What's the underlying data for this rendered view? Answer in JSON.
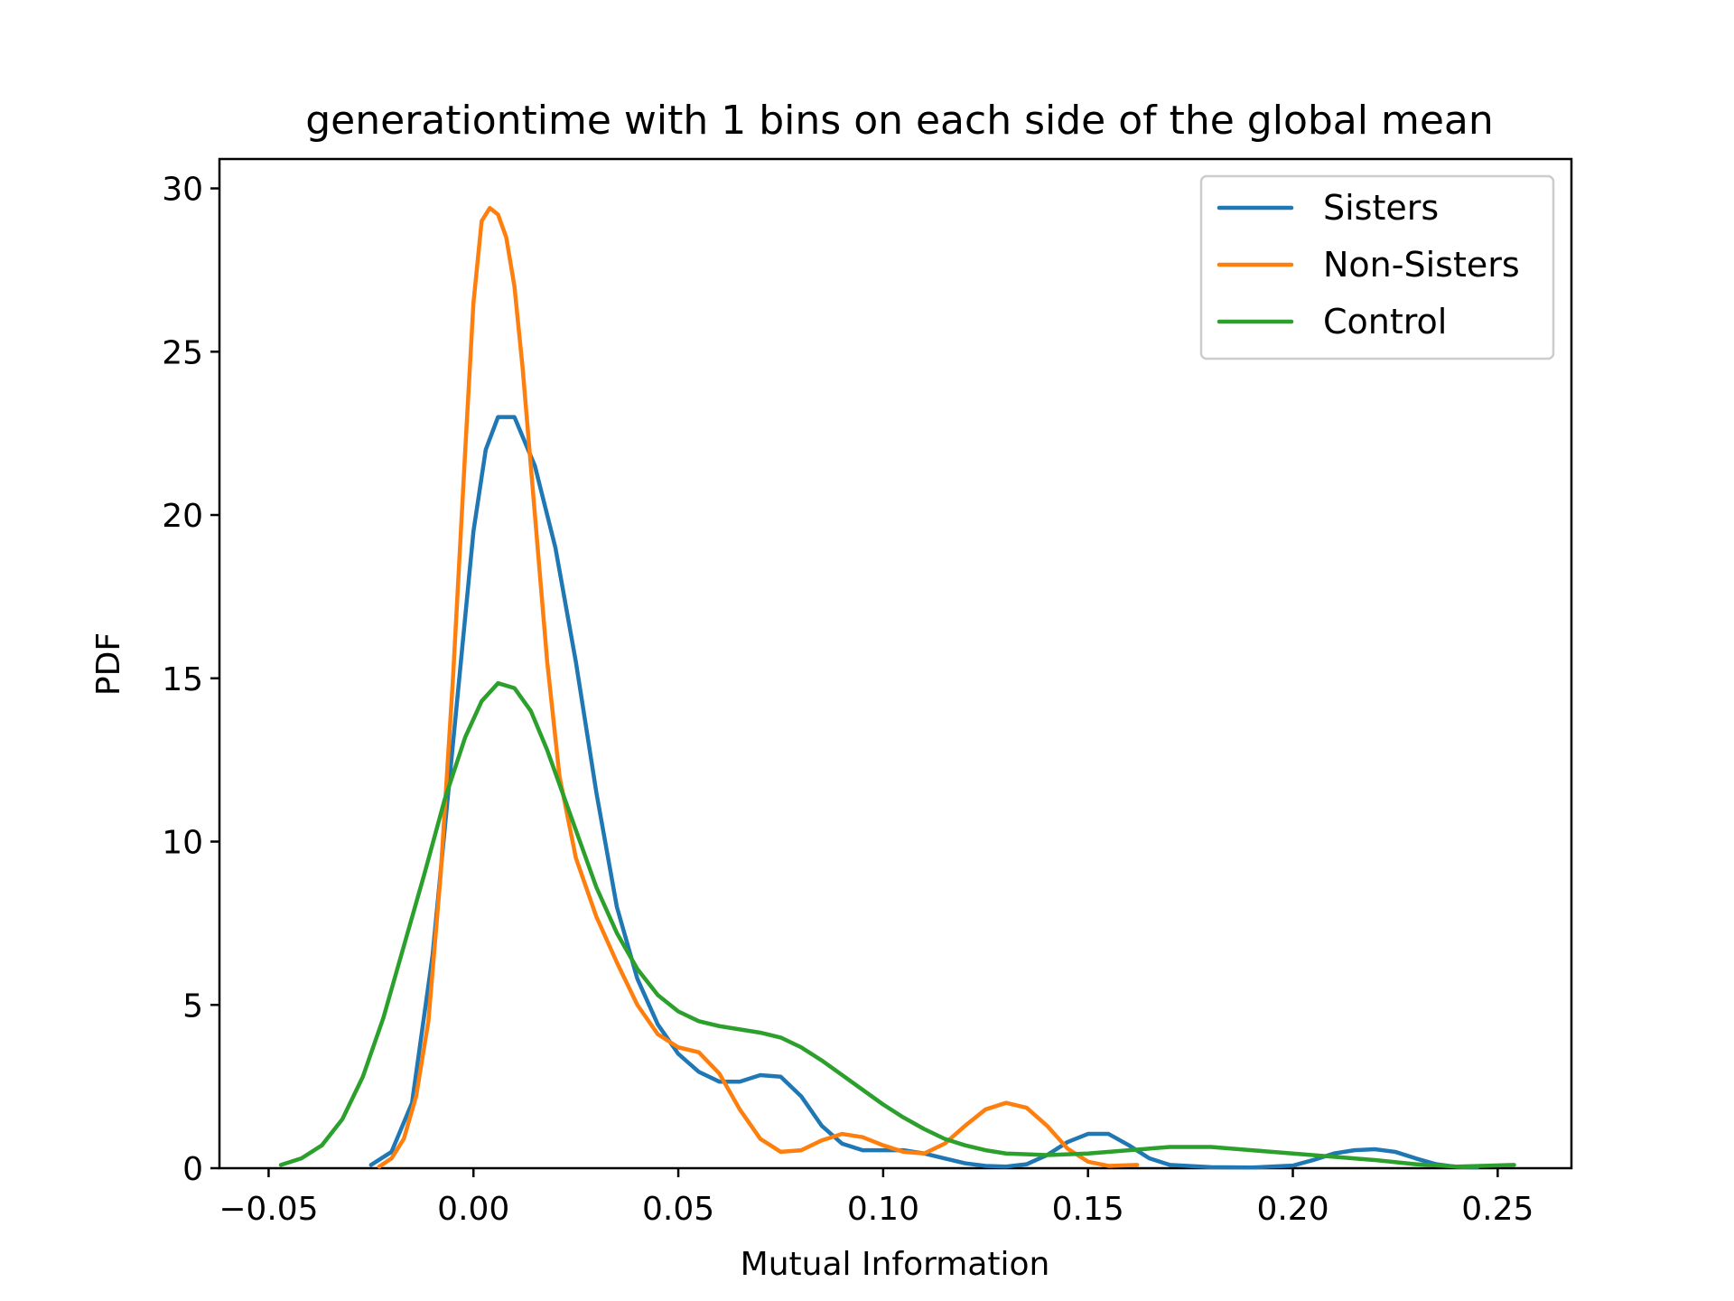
{
  "chart_data": {
    "type": "line",
    "title": "generationtime with 1 bins on each side of the global mean",
    "xlabel": "Mutual Information",
    "ylabel": "PDF",
    "xlim": [
      -0.062,
      0.268
    ],
    "ylim": [
      0,
      30.9
    ],
    "xticks": [
      -0.05,
      0.0,
      0.05,
      0.1,
      0.15,
      0.2,
      0.25
    ],
    "xtick_labels": [
      "−0.05",
      "0.00",
      "0.05",
      "0.10",
      "0.15",
      "0.20",
      "0.25"
    ],
    "yticks": [
      0,
      5,
      10,
      15,
      20,
      25,
      30
    ],
    "ytick_labels": [
      "0",
      "5",
      "10",
      "15",
      "20",
      "25",
      "30"
    ],
    "grid": false,
    "legend_position": "top-right",
    "series": [
      {
        "name": "Sisters",
        "color": "#1f77b4",
        "points": [
          [
            -0.025,
            0.1
          ],
          [
            -0.02,
            0.5
          ],
          [
            -0.015,
            2.0
          ],
          [
            -0.01,
            6.5
          ],
          [
            -0.005,
            13.0
          ],
          [
            0.0,
            19.5
          ],
          [
            0.003,
            22.0
          ],
          [
            0.006,
            23.0
          ],
          [
            0.01,
            23.0
          ],
          [
            0.015,
            21.5
          ],
          [
            0.02,
            19.0
          ],
          [
            0.025,
            15.5
          ],
          [
            0.03,
            11.5
          ],
          [
            0.035,
            8.0
          ],
          [
            0.04,
            5.8
          ],
          [
            0.045,
            4.4
          ],
          [
            0.05,
            3.5
          ],
          [
            0.055,
            2.95
          ],
          [
            0.06,
            2.65
          ],
          [
            0.065,
            2.65
          ],
          [
            0.07,
            2.85
          ],
          [
            0.075,
            2.8
          ],
          [
            0.08,
            2.2
          ],
          [
            0.085,
            1.3
          ],
          [
            0.09,
            0.75
          ],
          [
            0.095,
            0.55
          ],
          [
            0.1,
            0.55
          ],
          [
            0.105,
            0.55
          ],
          [
            0.11,
            0.45
          ],
          [
            0.115,
            0.3
          ],
          [
            0.12,
            0.15
          ],
          [
            0.125,
            0.07
          ],
          [
            0.13,
            0.05
          ],
          [
            0.135,
            0.12
          ],
          [
            0.14,
            0.4
          ],
          [
            0.145,
            0.8
          ],
          [
            0.15,
            1.05
          ],
          [
            0.155,
            1.05
          ],
          [
            0.16,
            0.7
          ],
          [
            0.165,
            0.3
          ],
          [
            0.17,
            0.1
          ],
          [
            0.18,
            0.03
          ],
          [
            0.19,
            0.02
          ],
          [
            0.2,
            0.08
          ],
          [
            0.205,
            0.25
          ],
          [
            0.21,
            0.45
          ],
          [
            0.215,
            0.55
          ],
          [
            0.22,
            0.58
          ],
          [
            0.225,
            0.5
          ],
          [
            0.23,
            0.3
          ],
          [
            0.235,
            0.12
          ],
          [
            0.24,
            0.04
          ],
          [
            0.245,
            0.02
          ]
        ]
      },
      {
        "name": "Non-Sisters",
        "color": "#ff7f0e",
        "points": [
          [
            -0.023,
            0.05
          ],
          [
            -0.02,
            0.3
          ],
          [
            -0.017,
            0.9
          ],
          [
            -0.014,
            2.2
          ],
          [
            -0.011,
            4.5
          ],
          [
            -0.008,
            9.0
          ],
          [
            -0.005,
            15.0
          ],
          [
            -0.002,
            22.0
          ],
          [
            0.0,
            26.5
          ],
          [
            0.002,
            29.0
          ],
          [
            0.004,
            29.4
          ],
          [
            0.006,
            29.2
          ],
          [
            0.008,
            28.5
          ],
          [
            0.01,
            27.0
          ],
          [
            0.012,
            24.5
          ],
          [
            0.015,
            20.0
          ],
          [
            0.018,
            15.5
          ],
          [
            0.021,
            12.0
          ],
          [
            0.025,
            9.5
          ],
          [
            0.03,
            7.7
          ],
          [
            0.035,
            6.3
          ],
          [
            0.04,
            5.0
          ],
          [
            0.045,
            4.1
          ],
          [
            0.05,
            3.7
          ],
          [
            0.055,
            3.55
          ],
          [
            0.06,
            2.9
          ],
          [
            0.065,
            1.8
          ],
          [
            0.07,
            0.9
          ],
          [
            0.075,
            0.5
          ],
          [
            0.08,
            0.55
          ],
          [
            0.085,
            0.85
          ],
          [
            0.09,
            1.05
          ],
          [
            0.095,
            0.95
          ],
          [
            0.1,
            0.7
          ],
          [
            0.105,
            0.5
          ],
          [
            0.11,
            0.45
          ],
          [
            0.115,
            0.75
          ],
          [
            0.12,
            1.3
          ],
          [
            0.125,
            1.8
          ],
          [
            0.13,
            2.0
          ],
          [
            0.135,
            1.85
          ],
          [
            0.14,
            1.3
          ],
          [
            0.145,
            0.6
          ],
          [
            0.15,
            0.2
          ],
          [
            0.155,
            0.07
          ],
          [
            0.162,
            0.1
          ]
        ]
      },
      {
        "name": "Control",
        "color": "#2ca02c",
        "points": [
          [
            -0.047,
            0.1
          ],
          [
            -0.042,
            0.3
          ],
          [
            -0.037,
            0.7
          ],
          [
            -0.032,
            1.5
          ],
          [
            -0.027,
            2.8
          ],
          [
            -0.022,
            4.6
          ],
          [
            -0.017,
            6.8
          ],
          [
            -0.012,
            9.0
          ],
          [
            -0.007,
            11.3
          ],
          [
            -0.002,
            13.2
          ],
          [
            0.002,
            14.3
          ],
          [
            0.006,
            14.85
          ],
          [
            0.01,
            14.7
          ],
          [
            0.014,
            14.0
          ],
          [
            0.018,
            12.8
          ],
          [
            0.022,
            11.4
          ],
          [
            0.026,
            10.0
          ],
          [
            0.03,
            8.6
          ],
          [
            0.035,
            7.2
          ],
          [
            0.04,
            6.1
          ],
          [
            0.045,
            5.3
          ],
          [
            0.05,
            4.8
          ],
          [
            0.055,
            4.5
          ],
          [
            0.06,
            4.35
          ],
          [
            0.065,
            4.25
          ],
          [
            0.07,
            4.15
          ],
          [
            0.075,
            4.0
          ],
          [
            0.08,
            3.7
          ],
          [
            0.085,
            3.3
          ],
          [
            0.09,
            2.85
          ],
          [
            0.095,
            2.4
          ],
          [
            0.1,
            1.95
          ],
          [
            0.105,
            1.55
          ],
          [
            0.11,
            1.2
          ],
          [
            0.115,
            0.9
          ],
          [
            0.12,
            0.7
          ],
          [
            0.125,
            0.55
          ],
          [
            0.13,
            0.45
          ],
          [
            0.14,
            0.4
          ],
          [
            0.15,
            0.45
          ],
          [
            0.16,
            0.55
          ],
          [
            0.17,
            0.65
          ],
          [
            0.18,
            0.65
          ],
          [
            0.19,
            0.55
          ],
          [
            0.2,
            0.45
          ],
          [
            0.21,
            0.35
          ],
          [
            0.22,
            0.25
          ],
          [
            0.23,
            0.12
          ],
          [
            0.24,
            0.05
          ],
          [
            0.254,
            0.1
          ]
        ]
      }
    ]
  }
}
